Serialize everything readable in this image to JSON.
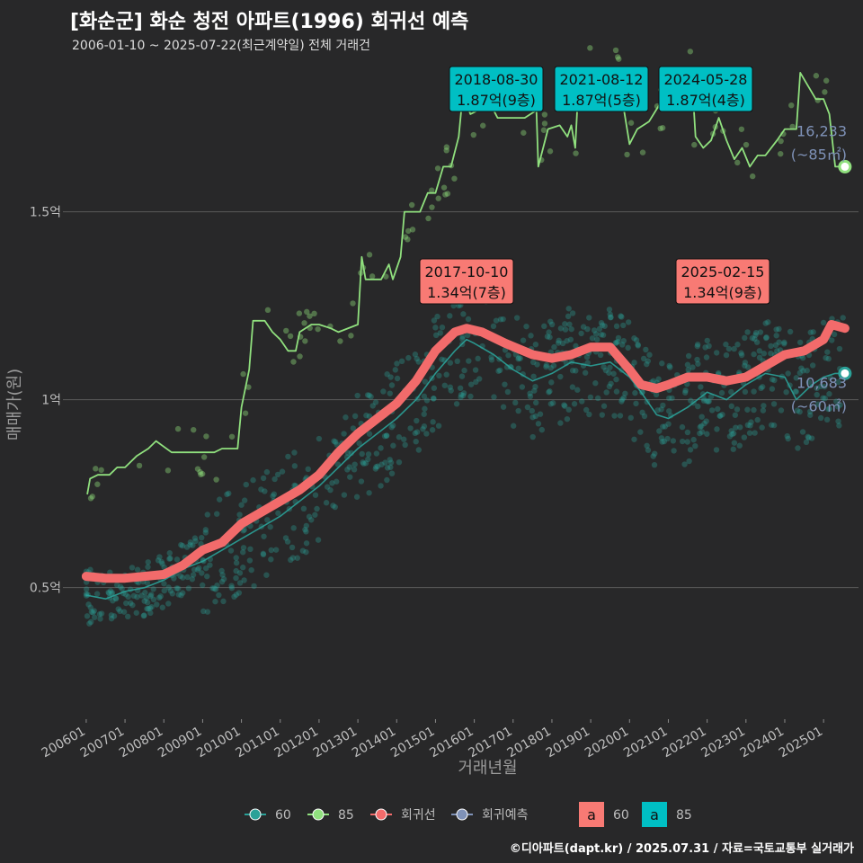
{
  "header": {
    "title": "[화순군] 화순 청전 아파트(1996) 회귀선 예측",
    "subtitle": "2006-01-10 ~ 2025-07-22(최근계약일) 전체 거래건"
  },
  "credit": "©디아파트(dapt.kr) / 2025.07.31 / 자료=국토교통부 실거래가",
  "colors": {
    "background": "#282829",
    "s60": "#2aa198",
    "s85": "#90e07e",
    "regression": "#f26b6b",
    "forecast": "#7f92b8",
    "label60": "#f87a74",
    "label85": "#00bfc4"
  },
  "chart_data": {
    "type": "line",
    "xlabel": "거래년월",
    "ylabel": "매매가(원)",
    "x_ticks": [
      "200601",
      "200701",
      "200801",
      "200901",
      "201001",
      "201101",
      "201201",
      "201301",
      "201401",
      "201501",
      "201601",
      "201701",
      "201801",
      "201901",
      "202001",
      "202101",
      "202201",
      "202301",
      "202401",
      "202501"
    ],
    "y_ticks": [
      {
        "value": 0.5,
        "label": "0.5억"
      },
      {
        "value": 1.0,
        "label": "1억"
      },
      {
        "value": 1.5,
        "label": "1.5억"
      }
    ],
    "ylim": [
      0.15,
      1.92
    ],
    "xlim": [
      2005.4,
      2025.9
    ],
    "grid": true,
    "series": [
      {
        "name": "85",
        "type": "line",
        "points": [
          [
            2006.03,
            0.75
          ],
          [
            2006.1,
            0.79
          ],
          [
            2006.3,
            0.8
          ],
          [
            2006.6,
            0.8
          ],
          [
            2006.8,
            0.82
          ],
          [
            2007.0,
            0.82
          ],
          [
            2007.3,
            0.85
          ],
          [
            2007.6,
            0.87
          ],
          [
            2007.8,
            0.89
          ],
          [
            2008.2,
            0.86
          ],
          [
            2008.8,
            0.86
          ],
          [
            2009.3,
            0.86
          ],
          [
            2009.5,
            0.87
          ],
          [
            2009.9,
            0.87
          ],
          [
            2010.0,
            0.98
          ],
          [
            2010.2,
            1.08
          ],
          [
            2010.3,
            1.21
          ],
          [
            2010.6,
            1.21
          ],
          [
            2010.8,
            1.18
          ],
          [
            2011.0,
            1.16
          ],
          [
            2011.2,
            1.13
          ],
          [
            2011.4,
            1.13
          ],
          [
            2011.5,
            1.18
          ],
          [
            2011.8,
            1.2
          ],
          [
            2012.0,
            1.2
          ],
          [
            2012.3,
            1.19
          ],
          [
            2012.5,
            1.18
          ],
          [
            2013.0,
            1.2
          ],
          [
            2013.1,
            1.38
          ],
          [
            2013.2,
            1.32
          ],
          [
            2013.6,
            1.32
          ],
          [
            2013.8,
            1.36
          ],
          [
            2013.9,
            1.32
          ],
          [
            2014.1,
            1.38
          ],
          [
            2014.2,
            1.5
          ],
          [
            2014.6,
            1.5
          ],
          [
            2014.8,
            1.55
          ],
          [
            2015.0,
            1.55
          ],
          [
            2015.2,
            1.62
          ],
          [
            2015.4,
            1.62
          ],
          [
            2015.6,
            1.7
          ],
          [
            2015.7,
            1.81
          ],
          [
            2015.9,
            1.76
          ],
          [
            2016.1,
            1.77
          ],
          [
            2016.4,
            1.79
          ],
          [
            2016.6,
            1.75
          ],
          [
            2017.0,
            1.75
          ],
          [
            2017.3,
            1.75
          ],
          [
            2017.6,
            1.77
          ],
          [
            2017.65,
            1.62
          ],
          [
            2017.9,
            1.72
          ],
          [
            2018.2,
            1.73
          ],
          [
            2018.4,
            1.7
          ],
          [
            2018.5,
            1.73
          ],
          [
            2018.6,
            1.67
          ],
          [
            2018.7,
            1.87
          ],
          [
            2019.0,
            1.87
          ],
          [
            2019.3,
            1.8
          ],
          [
            2019.5,
            1.84
          ],
          [
            2019.7,
            1.87
          ],
          [
            2020.0,
            1.68
          ],
          [
            2020.2,
            1.72
          ],
          [
            2020.5,
            1.74
          ],
          [
            2020.8,
            1.79
          ],
          [
            2021.0,
            1.79
          ],
          [
            2021.3,
            1.8
          ],
          [
            2021.6,
            1.87
          ],
          [
            2021.7,
            1.7
          ],
          [
            2021.9,
            1.67
          ],
          [
            2022.1,
            1.69
          ],
          [
            2022.3,
            1.75
          ],
          [
            2022.5,
            1.69
          ],
          [
            2022.7,
            1.64
          ],
          [
            2022.9,
            1.67
          ],
          [
            2023.1,
            1.62
          ],
          [
            2023.3,
            1.65
          ],
          [
            2023.5,
            1.65
          ],
          [
            2023.8,
            1.69
          ],
          [
            2024.0,
            1.72
          ],
          [
            2024.3,
            1.72
          ],
          [
            2024.4,
            1.87
          ],
          [
            2024.8,
            1.8
          ],
          [
            2025.0,
            1.8
          ],
          [
            2025.15,
            1.76
          ],
          [
            2025.3,
            1.62
          ],
          [
            2025.55,
            1.62
          ]
        ]
      },
      {
        "name": "60",
        "type": "line",
        "points": [
          [
            2006.0,
            0.48
          ],
          [
            2006.5,
            0.47
          ],
          [
            2007.0,
            0.49
          ],
          [
            2007.5,
            0.5
          ],
          [
            2008.0,
            0.52
          ],
          [
            2008.5,
            0.55
          ],
          [
            2009.0,
            0.57
          ],
          [
            2009.5,
            0.6
          ],
          [
            2010.0,
            0.63
          ],
          [
            2010.5,
            0.66
          ],
          [
            2011.0,
            0.69
          ],
          [
            2011.5,
            0.73
          ],
          [
            2012.0,
            0.77
          ],
          [
            2012.5,
            0.82
          ],
          [
            2013.0,
            0.87
          ],
          [
            2013.5,
            0.91
          ],
          [
            2014.0,
            0.95
          ],
          [
            2014.5,
            1.0
          ],
          [
            2015.0,
            1.07
          ],
          [
            2015.5,
            1.13
          ],
          [
            2015.8,
            1.16
          ],
          [
            2016.0,
            1.15
          ],
          [
            2016.5,
            1.12
          ],
          [
            2017.0,
            1.08
          ],
          [
            2017.5,
            1.05
          ],
          [
            2018.0,
            1.07
          ],
          [
            2018.5,
            1.1
          ],
          [
            2019.0,
            1.09
          ],
          [
            2019.5,
            1.1
          ],
          [
            2020.0,
            1.06
          ],
          [
            2020.3,
            1.02
          ],
          [
            2020.7,
            0.96
          ],
          [
            2021.0,
            0.95
          ],
          [
            2021.5,
            0.98
          ],
          [
            2022.0,
            1.02
          ],
          [
            2022.5,
            1.0
          ],
          [
            2023.0,
            1.04
          ],
          [
            2023.5,
            1.07
          ],
          [
            2024.0,
            1.06
          ],
          [
            2024.3,
            1.0
          ],
          [
            2024.7,
            1.04
          ],
          [
            2025.0,
            1.06
          ],
          [
            2025.3,
            1.07
          ],
          [
            2025.55,
            1.07
          ]
        ]
      },
      {
        "name": "회귀선",
        "type": "line",
        "points": [
          [
            2006.0,
            0.53
          ],
          [
            2006.5,
            0.525
          ],
          [
            2007.0,
            0.525
          ],
          [
            2007.5,
            0.53
          ],
          [
            2008.0,
            0.535
          ],
          [
            2008.5,
            0.56
          ],
          [
            2009.0,
            0.6
          ],
          [
            2009.5,
            0.62
          ],
          [
            2010.0,
            0.67
          ],
          [
            2010.5,
            0.7
          ],
          [
            2011.0,
            0.73
          ],
          [
            2011.5,
            0.76
          ],
          [
            2012.0,
            0.8
          ],
          [
            2012.5,
            0.86
          ],
          [
            2013.0,
            0.91
          ],
          [
            2013.5,
            0.95
          ],
          [
            2014.0,
            0.99
          ],
          [
            2014.5,
            1.05
          ],
          [
            2015.0,
            1.13
          ],
          [
            2015.5,
            1.18
          ],
          [
            2015.8,
            1.19
          ],
          [
            2016.2,
            1.18
          ],
          [
            2016.8,
            1.15
          ],
          [
            2017.5,
            1.12
          ],
          [
            2018.0,
            1.11
          ],
          [
            2018.5,
            1.12
          ],
          [
            2019.0,
            1.14
          ],
          [
            2019.5,
            1.14
          ],
          [
            2020.0,
            1.08
          ],
          [
            2020.3,
            1.04
          ],
          [
            2020.7,
            1.03
          ],
          [
            2021.0,
            1.04
          ],
          [
            2021.5,
            1.06
          ],
          [
            2022.0,
            1.06
          ],
          [
            2022.5,
            1.05
          ],
          [
            2023.0,
            1.06
          ],
          [
            2023.5,
            1.09
          ],
          [
            2024.0,
            1.12
          ],
          [
            2024.5,
            1.13
          ],
          [
            2025.0,
            1.16
          ],
          [
            2025.2,
            1.2
          ],
          [
            2025.55,
            1.19
          ]
        ]
      }
    ],
    "forecast_points": [
      {
        "name": "85",
        "x": 2025.55,
        "y": 1.62,
        "label": "16,233",
        "sublabel": "(~85㎡)"
      },
      {
        "name": "60",
        "x": 2025.55,
        "y": 1.07,
        "label": "10,683",
        "sublabel": "(~60㎡)"
      }
    ],
    "annotations": [
      {
        "series": "85",
        "date": "2018-08-30",
        "text": "1.87억(9층)",
        "x": 2018.66,
        "y": 1.87
      },
      {
        "series": "85",
        "date": "2021-08-12",
        "text": "1.87억(5층)",
        "x": 2021.61,
        "y": 1.87
      },
      {
        "series": "85",
        "date": "2024-05-28",
        "text": "1.87억(4층)",
        "x": 2024.41,
        "y": 1.87
      },
      {
        "series": "60",
        "date": "2017-10-10",
        "text": "1.34억(7층)",
        "x": 2017.77,
        "y": 1.34
      },
      {
        "series": "60",
        "date": "2025-02-15",
        "text": "1.34억(9층)",
        "x": 2025.12,
        "y": 1.34
      }
    ],
    "legend": {
      "position": "bottom",
      "items": [
        "60",
        "85",
        "회귀선",
        "회귀예측"
      ],
      "label_items": [
        {
          "glyph": "a",
          "text": "60"
        },
        {
          "glyph": "a",
          "text": "85"
        }
      ]
    }
  }
}
